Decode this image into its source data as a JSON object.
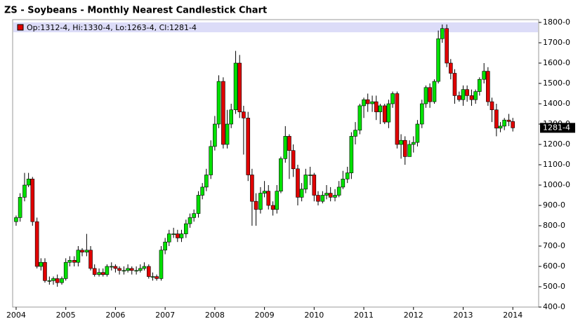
{
  "chart_data": {
    "type": "candlestick",
    "title": "ZS - Soybeans - Monthly Nearest Candlestick Chart",
    "legend_text": "Op:1312-4, Hi:1330-4, Lo:1263-4, Cl:1281-4",
    "last_label": "1281-4",
    "last_value": 1281.5,
    "up_color": "#00e000",
    "down_color": "#e00000",
    "x": [
      2004,
      2004.08,
      2004.17,
      2004.25,
      2004.33,
      2004.42,
      2004.5,
      2004.58,
      2004.67,
      2004.75,
      2004.83,
      2004.92,
      2005,
      2005.08,
      2005.17,
      2005.25,
      2005.33,
      2005.42,
      2005.5,
      2005.58,
      2005.67,
      2005.75,
      2005.83,
      2005.92,
      2006,
      2006.08,
      2006.17,
      2006.25,
      2006.33,
      2006.42,
      2006.5,
      2006.58,
      2006.67,
      2006.75,
      2006.83,
      2006.92,
      2007,
      2007.08,
      2007.17,
      2007.25,
      2007.33,
      2007.42,
      2007.5,
      2007.58,
      2007.67,
      2007.75,
      2007.83,
      2007.92,
      2008,
      2008.08,
      2008.17,
      2008.25,
      2008.33,
      2008.42,
      2008.5,
      2008.58,
      2008.67,
      2008.75,
      2008.83,
      2008.92,
      2009,
      2009.08,
      2009.17,
      2009.25,
      2009.33,
      2009.42,
      2009.5,
      2009.58,
      2009.67,
      2009.75,
      2009.83,
      2009.92,
      2010,
      2010.08,
      2010.17,
      2010.25,
      2010.33,
      2010.42,
      2010.5,
      2010.58,
      2010.67,
      2010.75,
      2010.83,
      2010.92,
      2011,
      2011.08,
      2011.17,
      2011.25,
      2011.33,
      2011.42,
      2011.5,
      2011.58,
      2011.67,
      2011.75,
      2011.83,
      2011.92,
      2012,
      2012.08,
      2012.17,
      2012.25,
      2012.33,
      2012.42,
      2012.5,
      2012.58,
      2012.67,
      2012.75,
      2012.83,
      2012.92,
      2013,
      2013.08,
      2013.17,
      2013.25,
      2013.33,
      2013.42,
      2013.5,
      2013.58,
      2013.67,
      2013.75,
      2013.83,
      2013.92,
      2014
    ],
    "open": [
      820,
      840,
      940,
      1000,
      1030,
      820,
      600,
      620,
      530,
      530,
      540,
      520,
      540,
      620,
      630,
      620,
      680,
      670,
      680,
      590,
      560,
      570,
      560,
      600,
      600,
      590,
      580,
      580,
      590,
      580,
      580,
      590,
      600,
      550,
      550,
      540,
      680,
      720,
      760,
      760,
      740,
      760,
      810,
      840,
      860,
      950,
      990,
      1050,
      1190,
      1300,
      1510,
      1200,
      1300,
      1370,
      1600,
      1360,
      1330,
      1050,
      920,
      880,
      960,
      970,
      900,
      880,
      970,
      1130,
      1240,
      1170,
      1080,
      940,
      980,
      1050,
      1050,
      950,
      920,
      950,
      960,
      940,
      950,
      990,
      1030,
      1060,
      1240,
      1270,
      1390,
      1420,
      1400,
      1410,
      1360,
      1390,
      1310,
      1400,
      1450,
      1200,
      1220,
      1140,
      1200,
      1210,
      1300,
      1400,
      1480,
      1410,
      1510,
      1720,
      1770,
      1600,
      1550,
      1440,
      1420,
      1470,
      1440,
      1420,
      1460,
      1520,
      1560,
      1410,
      1370,
      1280,
      1290,
      1320,
      1312.5
    ],
    "high": [
      850,
      960,
      1060,
      1060,
      1040,
      840,
      640,
      640,
      550,
      550,
      560,
      550,
      640,
      650,
      650,
      700,
      690,
      760,
      700,
      610,
      590,
      590,
      610,
      620,
      610,
      600,
      600,
      610,
      600,
      600,
      610,
      620,
      610,
      570,
      560,
      700,
      740,
      780,
      790,
      780,
      780,
      830,
      860,
      880,
      970,
      1010,
      1080,
      1220,
      1340,
      1540,
      1530,
      1370,
      1400,
      1660,
      1640,
      1390,
      1360,
      1080,
      960,
      990,
      1020,
      1000,
      920,
      1000,
      1140,
      1290,
      1250,
      1200,
      1100,
      1010,
      1080,
      1090,
      1060,
      970,
      970,
      1000,
      990,
      980,
      1020,
      1070,
      1090,
      1260,
      1310,
      1400,
      1430,
      1450,
      1440,
      1440,
      1400,
      1400,
      1420,
      1460,
      1460,
      1250,
      1240,
      1220,
      1240,
      1320,
      1420,
      1490,
      1500,
      1520,
      1760,
      1790,
      1790,
      1620,
      1570,
      1460,
      1490,
      1490,
      1470,
      1470,
      1530,
      1600,
      1580,
      1430,
      1400,
      1310,
      1330,
      1350,
      1330.5
    ],
    "low": [
      800,
      820,
      920,
      990,
      800,
      590,
      580,
      520,
      510,
      510,
      500,
      510,
      530,
      600,
      600,
      600,
      650,
      650,
      580,
      550,
      550,
      550,
      550,
      580,
      570,
      560,
      560,
      570,
      560,
      560,
      570,
      580,
      540,
      530,
      530,
      530,
      660,
      700,
      740,
      720,
      720,
      740,
      790,
      820,
      840,
      930,
      970,
      1030,
      1170,
      1280,
      1180,
      1180,
      1280,
      1350,
      1330,
      1150,
      1020,
      800,
      800,
      860,
      940,
      880,
      850,
      860,
      960,
      1110,
      1030,
      1040,
      900,
      920,
      960,
      1000,
      920,
      900,
      910,
      930,
      920,
      920,
      940,
      980,
      1010,
      1030,
      1200,
      1250,
      1330,
      1360,
      1360,
      1320,
      1300,
      1300,
      1280,
      1380,
      1180,
      1130,
      1100,
      1140,
      1160,
      1190,
      1280,
      1380,
      1380,
      1400,
      1500,
      1700,
      1580,
      1520,
      1400,
      1410,
      1390,
      1410,
      1390,
      1400,
      1440,
      1500,
      1390,
      1310,
      1240,
      1260,
      1270,
      1290,
      1263.5
    ],
    "close": [
      840,
      940,
      1000,
      1030,
      820,
      600,
      620,
      530,
      530,
      540,
      520,
      540,
      620,
      630,
      620,
      680,
      670,
      680,
      590,
      560,
      570,
      560,
      600,
      600,
      590,
      580,
      580,
      590,
      580,
      580,
      590,
      600,
      550,
      550,
      540,
      680,
      720,
      760,
      760,
      740,
      760,
      810,
      840,
      860,
      950,
      990,
      1050,
      1190,
      1300,
      1510,
      1200,
      1300,
      1370,
      1600,
      1360,
      1330,
      1050,
      920,
      880,
      960,
      970,
      900,
      880,
      970,
      1130,
      1240,
      1170,
      1080,
      940,
      980,
      1050,
      1050,
      950,
      920,
      950,
      960,
      940,
      950,
      990,
      1030,
      1060,
      1240,
      1270,
      1390,
      1420,
      1400,
      1410,
      1360,
      1390,
      1310,
      1400,
      1450,
      1200,
      1220,
      1140,
      1200,
      1210,
      1300,
      1400,
      1480,
      1410,
      1510,
      1720,
      1770,
      1600,
      1550,
      1440,
      1420,
      1470,
      1440,
      1420,
      1460,
      1520,
      1560,
      1410,
      1370,
      1280,
      1290,
      1320,
      1312.5,
      1281.5
    ],
    "xlim": [
      2003.93,
      2014.52
    ],
    "xticks": [
      2004,
      2005,
      2006,
      2007,
      2008,
      2009,
      2010,
      2011,
      2012,
      2013,
      2014
    ],
    "ylim": [
      400,
      1800
    ],
    "yticks": [
      {
        "value": 400,
        "label": "400-0"
      },
      {
        "value": 500,
        "label": "500-0"
      },
      {
        "value": 600,
        "label": "600-0"
      },
      {
        "value": 700,
        "label": "700-0"
      },
      {
        "value": 800,
        "label": "800-0"
      },
      {
        "value": 900,
        "label": "900-0"
      },
      {
        "value": 1000,
        "label": "1000-0"
      },
      {
        "value": 1100,
        "label": "1100-0"
      },
      {
        "value": 1200,
        "label": "1200-0"
      },
      {
        "value": 1300,
        "label": "1300-0"
      },
      {
        "value": 1400,
        "label": "1400-0"
      },
      {
        "value": 1500,
        "label": "1500-0"
      },
      {
        "value": 1600,
        "label": "1600-0"
      },
      {
        "value": 1700,
        "label": "1700-0"
      },
      {
        "value": 1800,
        "label": "1800-0"
      }
    ]
  }
}
